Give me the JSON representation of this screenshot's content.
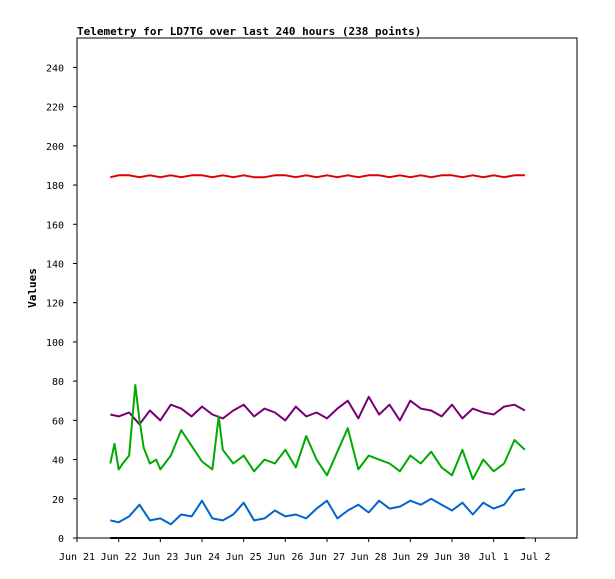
{
  "chart_data": {
    "type": "line",
    "title": "Telemetry for LD7TG over last 240 hours (238 points)",
    "xlabel": "",
    "ylabel": "Values",
    "xlim": [
      0,
      12
    ],
    "ylim": [
      0,
      255
    ],
    "x_ticks": [
      {
        "x": 0,
        "label": "Jun 21"
      },
      {
        "x": 1,
        "label": "Jun 22"
      },
      {
        "x": 2,
        "label": "Jun 23"
      },
      {
        "x": 3,
        "label": "Jun 24"
      },
      {
        "x": 4,
        "label": "Jun 25"
      },
      {
        "x": 5,
        "label": "Jun 26"
      },
      {
        "x": 6,
        "label": "Jun 27"
      },
      {
        "x": 7,
        "label": "Jun 28"
      },
      {
        "x": 8,
        "label": "Jun 29"
      },
      {
        "x": 9,
        "label": "Jun 30"
      },
      {
        "x": 10,
        "label": "Jul 1"
      },
      {
        "x": 11,
        "label": "Jul 2"
      }
    ],
    "y_ticks": [
      0,
      20,
      40,
      60,
      80,
      100,
      120,
      140,
      160,
      180,
      200,
      220,
      240
    ],
    "grid": false,
    "legend": "none",
    "series": [
      {
        "color": "#dd0000",
        "x": [
          0.8,
          1.0,
          1.25,
          1.5,
          1.75,
          2.0,
          2.25,
          2.5,
          2.75,
          3.0,
          3.25,
          3.5,
          3.75,
          4.0,
          4.25,
          4.5,
          4.75,
          5.0,
          5.25,
          5.5,
          5.75,
          6.0,
          6.25,
          6.5,
          6.75,
          7.0,
          7.25,
          7.5,
          7.75,
          8.0,
          8.25,
          8.5,
          8.75,
          9.0,
          9.25,
          9.5,
          9.75,
          10.0,
          10.25,
          10.5,
          10.75
        ],
        "y": [
          184,
          185,
          185,
          184,
          185,
          184,
          185,
          184,
          185,
          185,
          184,
          185,
          184,
          185,
          184,
          184,
          185,
          185,
          184,
          185,
          184,
          185,
          184,
          185,
          184,
          185,
          185,
          184,
          185,
          184,
          185,
          184,
          185,
          185,
          184,
          185,
          184,
          185,
          184,
          185,
          185
        ]
      },
      {
        "color": "#770077",
        "x": [
          0.8,
          1.0,
          1.25,
          1.5,
          1.75,
          2.0,
          2.25,
          2.5,
          2.75,
          3.0,
          3.25,
          3.5,
          3.75,
          4.0,
          4.25,
          4.5,
          4.75,
          5.0,
          5.25,
          5.5,
          5.75,
          6.0,
          6.25,
          6.5,
          6.75,
          7.0,
          7.25,
          7.5,
          7.75,
          8.0,
          8.25,
          8.5,
          8.75,
          9.0,
          9.25,
          9.5,
          9.75,
          10.0,
          10.25,
          10.5,
          10.75
        ],
        "y": [
          63,
          62,
          64,
          58,
          65,
          60,
          68,
          66,
          62,
          67,
          63,
          61,
          65,
          68,
          62,
          66,
          64,
          60,
          67,
          62,
          64,
          61,
          66,
          70,
          61,
          72,
          63,
          68,
          60,
          70,
          66,
          65,
          62,
          68,
          61,
          66,
          64,
          63,
          67,
          68,
          65
        ]
      },
      {
        "color": "#00aa00",
        "x": [
          0.8,
          0.9,
          1.0,
          1.1,
          1.25,
          1.4,
          1.5,
          1.6,
          1.75,
          1.9,
          2.0,
          2.25,
          2.5,
          2.75,
          3.0,
          3.25,
          3.4,
          3.5,
          3.75,
          4.0,
          4.25,
          4.5,
          4.75,
          5.0,
          5.25,
          5.5,
          5.75,
          6.0,
          6.25,
          6.5,
          6.75,
          7.0,
          7.25,
          7.5,
          7.75,
          8.0,
          8.25,
          8.5,
          8.75,
          9.0,
          9.25,
          9.5,
          9.75,
          10.0,
          10.25,
          10.5,
          10.75
        ],
        "y": [
          38,
          48,
          35,
          38,
          42,
          78,
          60,
          46,
          38,
          40,
          35,
          42,
          55,
          47,
          39,
          35,
          62,
          45,
          38,
          42,
          34,
          40,
          38,
          45,
          36,
          52,
          40,
          32,
          44,
          56,
          35,
          42,
          40,
          38,
          34,
          42,
          38,
          44,
          36,
          32,
          45,
          30,
          40,
          34,
          38,
          50,
          45
        ]
      },
      {
        "color": "#0066cc",
        "x": [
          0.8,
          1.0,
          1.25,
          1.5,
          1.75,
          2.0,
          2.25,
          2.5,
          2.75,
          3.0,
          3.25,
          3.5,
          3.75,
          4.0,
          4.25,
          4.5,
          4.75,
          5.0,
          5.25,
          5.5,
          5.75,
          6.0,
          6.25,
          6.5,
          6.75,
          7.0,
          7.25,
          7.5,
          7.75,
          8.0,
          8.25,
          8.5,
          8.75,
          9.0,
          9.25,
          9.5,
          9.75,
          10.0,
          10.25,
          10.5,
          10.75
        ],
        "y": [
          9,
          8,
          11,
          17,
          9,
          10,
          7,
          12,
          11,
          19,
          10,
          9,
          12,
          18,
          9,
          10,
          14,
          11,
          12,
          10,
          15,
          19,
          10,
          14,
          17,
          13,
          19,
          15,
          16,
          19,
          17,
          20,
          17,
          14,
          18,
          12,
          18,
          15,
          17,
          24,
          25
        ]
      },
      {
        "color": "#000000",
        "x": [
          0.8,
          10.75
        ],
        "y": [
          0,
          0
        ]
      }
    ]
  }
}
